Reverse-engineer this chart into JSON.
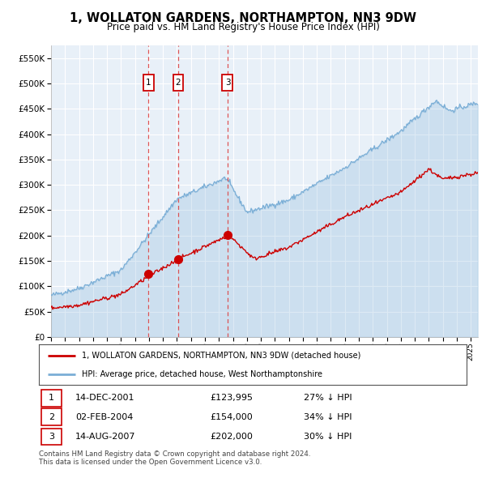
{
  "title": "1, WOLLATON GARDENS, NORTHAMPTON, NN3 9DW",
  "subtitle": "Price paid vs. HM Land Registry's House Price Index (HPI)",
  "legend_line1": "1, WOLLATON GARDENS, NORTHAMPTON, NN3 9DW (detached house)",
  "legend_line2": "HPI: Average price, detached house, West Northamptonshire",
  "footer1": "Contains HM Land Registry data © Crown copyright and database right 2024.",
  "footer2": "This data is licensed under the Open Government Licence v3.0.",
  "transactions": [
    {
      "num": 1,
      "date": "14-DEC-2001",
      "price": 123995,
      "price_str": "£123,995",
      "pct": "27%",
      "dir": "↓",
      "year_x": 2001.96
    },
    {
      "num": 2,
      "date": "02-FEB-2004",
      "price": 154000,
      "price_str": "£154,000",
      "pct": "34%",
      "dir": "↓",
      "year_x": 2004.09
    },
    {
      "num": 3,
      "date": "14-AUG-2007",
      "price": 202000,
      "price_str": "£202,000",
      "pct": "30%",
      "dir": "↓",
      "year_x": 2007.62
    }
  ],
  "ylim": [
    0,
    575000
  ],
  "yticks": [
    0,
    50000,
    100000,
    150000,
    200000,
    250000,
    300000,
    350000,
    400000,
    450000,
    500000,
    550000
  ],
  "bg_color": "#e8f0f8",
  "red_line_color": "#cc0000",
  "blue_line_color": "#7aaed6",
  "red_dot_color": "#cc0000",
  "vline_color": "#dd4444",
  "box_color": "#cc0000",
  "grid_color": "#ffffff",
  "title_color": "#000000",
  "font_family": "DejaVu Sans",
  "xmin": 1995,
  "xmax": 2025.5
}
